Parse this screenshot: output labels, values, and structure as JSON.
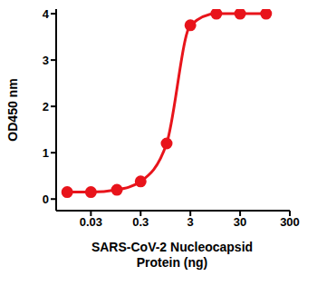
{
  "chart_data": {
    "type": "line",
    "x_label": "SARS-CoV-2 Nucleocapsid Protein (ng)",
    "y_label": "OD450 nm",
    "x": [
      0.01,
      0.03,
      0.1,
      0.3,
      1,
      3,
      10,
      30,
      100
    ],
    "values": [
      0.15,
      0.15,
      0.2,
      0.38,
      1.2,
      3.75,
      4.0,
      4.0,
      4.0
    ],
    "color": "#e8141b",
    "marker": "circle",
    "log": "x",
    "xlim": [
      0.006,
      300
    ],
    "xticks": [
      0.03,
      0.3,
      3,
      30,
      300
    ],
    "ylim": [
      -0.25,
      4.1
    ],
    "yticks": [
      0,
      1,
      2,
      3,
      4
    ],
    "grid": false
  }
}
